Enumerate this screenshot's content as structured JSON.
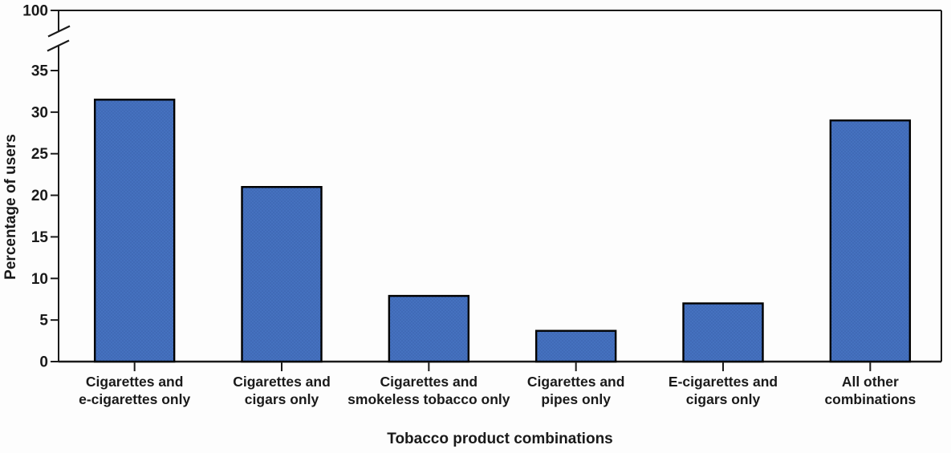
{
  "chart_data": {
    "type": "bar",
    "title": "",
    "xlabel": "Tobacco product combinations",
    "ylabel": "Percentage of users",
    "categories": [
      [
        "Cigarettes and",
        "e-cigarettes only"
      ],
      [
        "Cigarettes and",
        "cigars only"
      ],
      [
        "Cigarettes and",
        "smokeless tobacco only"
      ],
      [
        "Cigarettes and",
        "pipes only"
      ],
      [
        "E-cigarettes and",
        "cigars only"
      ],
      [
        "All other",
        "combinations"
      ]
    ],
    "values": [
      31.5,
      21.0,
      7.9,
      3.7,
      7.0,
      29.0
    ],
    "y_ticks": [
      0,
      5,
      10,
      15,
      20,
      25,
      30,
      35
    ],
    "y_break_top_tick": 100,
    "axis_break": true,
    "ylim": [
      0,
      35
    ],
    "grid": false,
    "legend": null,
    "colors": {
      "bar_fill": "#4571bf",
      "bar_dot": "#3a63ac",
      "bar_border": "#000000",
      "axis": "#1a1a1a",
      "text": "#1a1a1a"
    }
  }
}
